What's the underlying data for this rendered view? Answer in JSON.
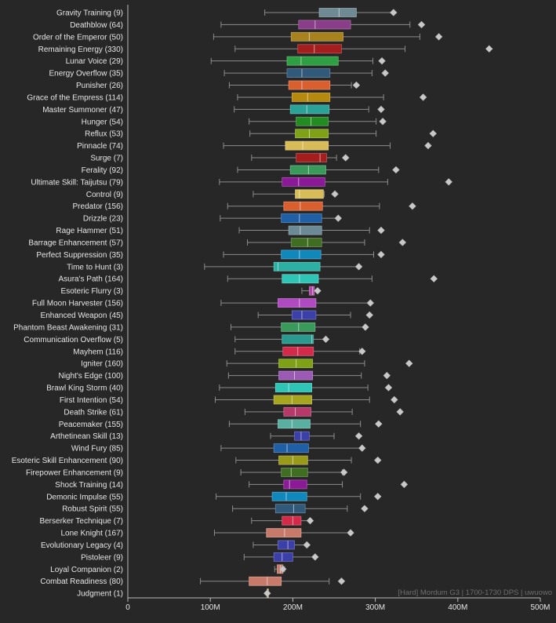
{
  "chart_data": {
    "type": "box",
    "xlim": [
      0,
      500
    ],
    "x_unit": "M",
    "x_ticks": [
      "0",
      "100M",
      "200M",
      "300M",
      "400M",
      "500M"
    ],
    "orientation": "horizontal",
    "grid": false,
    "watermark": "[Hard] Mordum G3 | 1700-1730 DPS | uwuowo",
    "series": [
      {
        "label": "Gravity Training (9)",
        "color": "#708a93",
        "whisker_low": 166,
        "q1": 232,
        "median": 256,
        "q3": 277,
        "whisker_high": 322,
        "outliers": [
          322
        ]
      },
      {
        "label": "Deathblow (64)",
        "color": "#8a3d88",
        "whisker_low": 113,
        "q1": 207,
        "median": 227,
        "q3": 270,
        "whisker_high": 342,
        "outliers": [
          356
        ]
      },
      {
        "label": "Order of the Emperor (50)",
        "color": "#a8821e",
        "whisker_low": 104,
        "q1": 198,
        "median": 220,
        "q3": 261,
        "whisker_high": 354,
        "outliers": [
          377
        ]
      },
      {
        "label": "Remaining Energy (330)",
        "color": "#a51e1e",
        "whisker_low": 130,
        "q1": 206,
        "median": 226,
        "q3": 259,
        "whisker_high": 336,
        "outliers": [
          438
        ]
      },
      {
        "label": "Lunar Voice (29)",
        "color": "#2ea043",
        "whisker_low": 101,
        "q1": 193,
        "median": 210,
        "q3": 255,
        "whisker_high": 297,
        "outliers": [
          308
        ]
      },
      {
        "label": "Energy Overflow (35)",
        "color": "#31597a",
        "whisker_low": 117,
        "q1": 193,
        "median": 211,
        "q3": 245,
        "whisker_high": 296,
        "outliers": [
          312
        ]
      },
      {
        "label": "Punisher (26)",
        "color": "#d95f2e",
        "whisker_low": 123,
        "q1": 195,
        "median": 211,
        "q3": 245,
        "whisker_high": 271,
        "outliers": [
          277
        ]
      },
      {
        "label": "Grace of the Empress (114)",
        "color": "#b5880e",
        "whisker_low": 133,
        "q1": 199,
        "median": 218,
        "q3": 245,
        "whisker_high": 310,
        "outliers": [
          358
        ]
      },
      {
        "label": "Master Summoner (47)",
        "color": "#2aa298",
        "whisker_low": 129,
        "q1": 197,
        "median": 217,
        "q3": 244,
        "whisker_high": 292,
        "outliers": [
          307
        ]
      },
      {
        "label": "Hunger (54)",
        "color": "#228b22",
        "whisker_low": 147,
        "q1": 204,
        "median": 222,
        "q3": 243,
        "whisker_high": 301,
        "outliers": [
          309
        ]
      },
      {
        "label": "Reflux (53)",
        "color": "#7ea116",
        "whisker_low": 148,
        "q1": 203,
        "median": 220,
        "q3": 243,
        "whisker_high": 301,
        "outliers": [
          370
        ]
      },
      {
        "label": "Pinnacle (74)",
        "color": "#d8bc58",
        "whisker_low": 116,
        "q1": 191,
        "median": 212,
        "q3": 243,
        "whisker_high": 318,
        "outliers": [
          364
        ]
      },
      {
        "label": "Surge (7)",
        "color": "#a51e1e",
        "whisker_low": 150,
        "q1": 204,
        "median": 233,
        "q3": 241,
        "whisker_high": 253,
        "outliers": [
          264
        ]
      },
      {
        "label": "Ferality (92)",
        "color": "#3a9a5b",
        "whisker_low": 133,
        "q1": 197,
        "median": 219,
        "q3": 240,
        "whisker_high": 304,
        "outliers": [
          325
        ]
      },
      {
        "label": "Ultimate Skill: Taijutsu (79)",
        "color": "#8b1a96",
        "whisker_low": 111,
        "q1": 187,
        "median": 207,
        "q3": 239,
        "whisker_high": 315,
        "outliers": [
          389
        ]
      },
      {
        "label": "Control (9)",
        "color": "#d8bc58",
        "whisker_low": 152,
        "q1": 203,
        "median": 208,
        "q3": 237,
        "whisker_high": 238,
        "outliers": [
          251
        ]
      },
      {
        "label": "Predator (156)",
        "color": "#d95f2e",
        "whisker_low": 121,
        "q1": 189,
        "median": 209,
        "q3": 236,
        "whisker_high": 305,
        "outliers": [
          345
        ]
      },
      {
        "label": "Drizzle (23)",
        "color": "#1f5fa6",
        "whisker_low": 112,
        "q1": 186,
        "median": 208,
        "q3": 235,
        "whisker_high": 255,
        "outliers": [
          255
        ]
      },
      {
        "label": "Rage Hammer (51)",
        "color": "#6b8a96",
        "whisker_low": 135,
        "q1": 195,
        "median": 209,
        "q3": 235,
        "whisker_high": 293,
        "outliers": [
          307
        ]
      },
      {
        "label": "Barrage Enhancement (57)",
        "color": "#3f6e22",
        "whisker_low": 145,
        "q1": 198,
        "median": 218,
        "q3": 235,
        "whisker_high": 287,
        "outliers": [
          333
        ]
      },
      {
        "label": "Perfect Suppression (35)",
        "color": "#1188bb",
        "whisker_low": 116,
        "q1": 186,
        "median": 208,
        "q3": 234,
        "whisker_high": 298,
        "outliers": [
          307
        ]
      },
      {
        "label": "Time to Hunt (3)",
        "color": "#2bb0a3",
        "whisker_low": 93,
        "q1": 177,
        "median": 182,
        "q3": 233,
        "whisker_high": 280,
        "outliers": [
          280
        ]
      },
      {
        "label": "Asura's Path (164)",
        "color": "#2ec4b6",
        "whisker_low": 121,
        "q1": 187,
        "median": 208,
        "q3": 231,
        "whisker_high": 296,
        "outliers": [
          371
        ]
      },
      {
        "label": "Esoteric Flurry (3)",
        "color": "#b04aa8",
        "whisker_low": 211,
        "q1": 220,
        "median": 224,
        "q3": 226,
        "whisker_high": 230,
        "outliers": [
          230
        ]
      },
      {
        "label": "Full Moon Harvester (156)",
        "color": "#b04ac0",
        "whisker_low": 113,
        "q1": 182,
        "median": 208,
        "q3": 228,
        "whisker_high": 294,
        "outliers": [
          294
        ]
      },
      {
        "label": "Enhanced Weapon (45)",
        "color": "#3b3fa8",
        "whisker_low": 158,
        "q1": 199,
        "median": 211,
        "q3": 228,
        "whisker_high": 270,
        "outliers": [
          293
        ]
      },
      {
        "label": "Phantom Beast Awakening (31)",
        "color": "#3a9a5b",
        "whisker_low": 125,
        "q1": 186,
        "median": 207,
        "q3": 227,
        "whisker_high": 287,
        "outliers": [
          288
        ]
      },
      {
        "label": "Communication Overflow (5)",
        "color": "#2a9a8e",
        "whisker_low": 130,
        "q1": 187,
        "median": 223,
        "q3": 225,
        "whisker_high": 240,
        "outliers": [
          240
        ]
      },
      {
        "label": "Mayhem (116)",
        "color": "#d42a4a",
        "whisker_low": 130,
        "q1": 188,
        "median": 206,
        "q3": 225,
        "whisker_high": 281,
        "outliers": [
          284
        ]
      },
      {
        "label": "Igniter (160)",
        "color": "#7ea116",
        "whisker_low": 120,
        "q1": 183,
        "median": 204,
        "q3": 224,
        "whisker_high": 287,
        "outliers": [
          341
        ]
      },
      {
        "label": "Night's Edge (100)",
        "color": "#9b5bb5",
        "whisker_low": 122,
        "q1": 183,
        "median": 202,
        "q3": 224,
        "whisker_high": 283,
        "outliers": [
          314
        ]
      },
      {
        "label": "Brawl King Storm (40)",
        "color": "#2ec4b6",
        "whisker_low": 111,
        "q1": 179,
        "median": 195,
        "q3": 223,
        "whisker_high": 291,
        "outliers": [
          316
        ]
      },
      {
        "label": "First Intention (54)",
        "color": "#a5a51e",
        "whisker_low": 106,
        "q1": 177,
        "median": 199,
        "q3": 223,
        "whisker_high": 293,
        "outliers": [
          323
        ]
      },
      {
        "label": "Death Strike (61)",
        "color": "#b53a6a",
        "whisker_low": 142,
        "q1": 189,
        "median": 203,
        "q3": 222,
        "whisker_high": 272,
        "outliers": [
          330
        ]
      },
      {
        "label": "Peacemaker (155)",
        "color": "#5ab0a0",
        "whisker_low": 123,
        "q1": 182,
        "median": 199,
        "q3": 221,
        "whisker_high": 282,
        "outliers": [
          304
        ]
      },
      {
        "label": "Arthetinean Skill (13)",
        "color": "#3b3fa8",
        "whisker_low": 173,
        "q1": 202,
        "median": 210,
        "q3": 220,
        "whisker_high": 250,
        "outliers": [
          280
        ]
      },
      {
        "label": "Wind Fury (85)",
        "color": "#1f5fa6",
        "whisker_low": 113,
        "q1": 177,
        "median": 193,
        "q3": 219,
        "whisker_high": 284,
        "outliers": [
          284
        ]
      },
      {
        "label": "Esoteric Skill Enhancement (90)",
        "color": "#9a9a1a",
        "whisker_low": 131,
        "q1": 183,
        "median": 200,
        "q3": 218,
        "whisker_high": 271,
        "outliers": [
          303
        ]
      },
      {
        "label": "Firepower Enhancement (9)",
        "color": "#3f6e22",
        "whisker_low": 137,
        "q1": 186,
        "median": 198,
        "q3": 218,
        "whisker_high": 260,
        "outliers": [
          262
        ]
      },
      {
        "label": "Shock Training (14)",
        "color": "#8b1a96",
        "whisker_low": 147,
        "q1": 189,
        "median": 196,
        "q3": 217,
        "whisker_high": 260,
        "outliers": [
          335
        ]
      },
      {
        "label": "Demonic Impulse (55)",
        "color": "#1188bb",
        "whisker_low": 107,
        "q1": 175,
        "median": 192,
        "q3": 217,
        "whisker_high": 282,
        "outliers": [
          303
        ]
      },
      {
        "label": "Robust Spirit (55)",
        "color": "#31597a",
        "whisker_low": 127,
        "q1": 179,
        "median": 201,
        "q3": 215,
        "whisker_high": 266,
        "outliers": [
          287
        ]
      },
      {
        "label": "Berserker Technique (7)",
        "color": "#d42a4a",
        "whisker_low": 150,
        "q1": 187,
        "median": 200,
        "q3": 210,
        "whisker_high": 221,
        "outliers": [
          221
        ]
      },
      {
        "label": "Lone Knight (167)",
        "color": "#c87a6a",
        "whisker_low": 105,
        "q1": 168,
        "median": 190,
        "q3": 210,
        "whisker_high": 270,
        "outliers": [
          270
        ]
      },
      {
        "label": "Evolutionary Legacy (4)",
        "color": "#3b3fa8",
        "whisker_low": 152,
        "q1": 182,
        "median": 194,
        "q3": 202,
        "whisker_high": 217,
        "outliers": [
          217
        ]
      },
      {
        "label": "Pistoleer (9)",
        "color": "#3b3fa8",
        "whisker_low": 141,
        "q1": 177,
        "median": 187,
        "q3": 200,
        "whisker_high": 227,
        "outliers": [
          227
        ]
      },
      {
        "label": "Loyal Companion (2)",
        "color": "#c87a6a",
        "whisker_low": 178,
        "q1": 181,
        "median": 185,
        "q3": 188,
        "whisker_high": 190,
        "outliers": [
          188
        ]
      },
      {
        "label": "Combat Readiness (80)",
        "color": "#c87a6a",
        "whisker_low": 88,
        "q1": 147,
        "median": 169,
        "q3": 186,
        "whisker_high": 244,
        "outliers": [
          259
        ]
      },
      {
        "label": "Judgment (1)",
        "color": "#d8bc58",
        "whisker_low": 169,
        "q1": 169,
        "median": 169,
        "q3": 169,
        "whisker_high": 169,
        "outliers": [
          169
        ]
      }
    ]
  }
}
